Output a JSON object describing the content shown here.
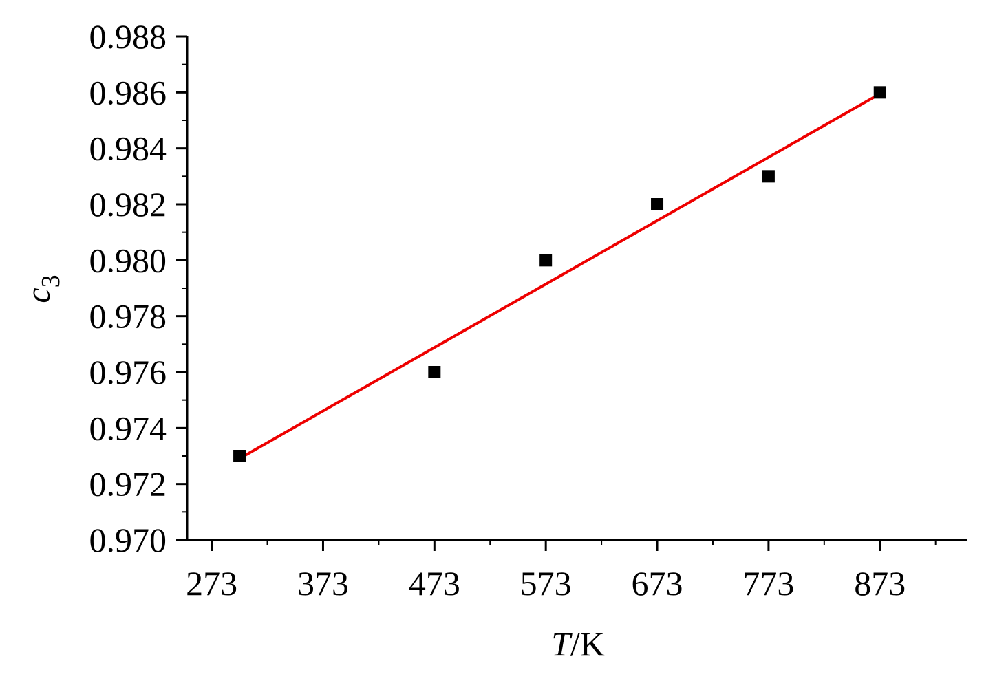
{
  "chart_data": {
    "type": "scatter",
    "xlabel": [
      "T",
      "/K"
    ],
    "ylabel": [
      "c",
      "3"
    ],
    "points": {
      "x": [
        298,
        473,
        573,
        673,
        773,
        873
      ],
      "values": [
        0.973,
        0.976,
        0.98,
        0.982,
        0.983,
        0.986
      ],
      "color": "#000000"
    },
    "fit": {
      "x": [
        298,
        873
      ],
      "values": [
        0.97291,
        0.98595
      ],
      "color": "#ee0000"
    },
    "xlim": [
      251,
      951
    ],
    "xticks": [
      273,
      373,
      473,
      573,
      673,
      773,
      873
    ],
    "ylim": [
      0.97,
      0.988
    ],
    "yticks": [
      {
        "value": 0.97,
        "label": "0.970"
      },
      0.972,
      0.974,
      0.976,
      0.978,
      {
        "value": 0.98,
        "label": "0.980"
      },
      0.982,
      0.984,
      0.986,
      0.988
    ],
    "grid": false
  }
}
